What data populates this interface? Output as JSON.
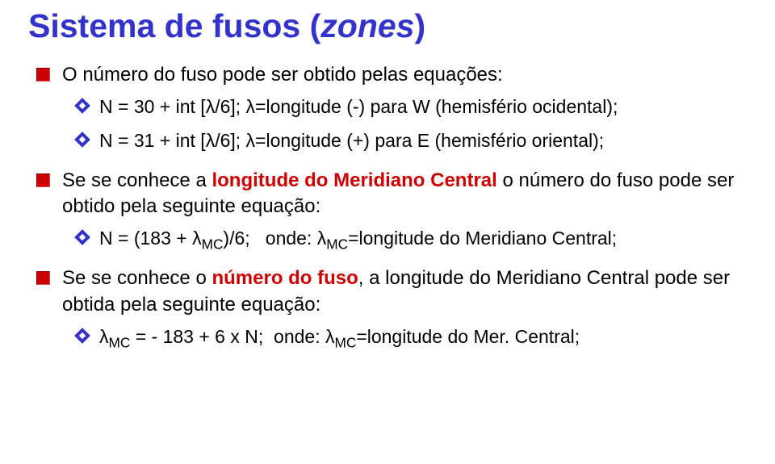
{
  "title": {
    "prefix": "Sistema de fusos (",
    "italic": "zones",
    "suffix": ")"
  },
  "colors": {
    "title": "#3333cc",
    "highlight": "#cc0000",
    "body_text": "#000000",
    "background": "#ffffff",
    "bullet_l1": "#cc0000",
    "bullet_l2": "#3333cc"
  },
  "fonts": {
    "title_family": "Comic Sans MS",
    "title_size_pt": 31,
    "body_family": "Verdana",
    "body_size_pt": 18
  },
  "items": [
    {
      "type": "l1",
      "pre": "O número do fuso pode ser obtido pelas equações:",
      "sub": [
        "N = 30 + int [λ/6]; λ=longitude (-) para W (hemisfério ocidental);",
        "N = 31 + int [λ/6]; λ=longitude (+) para E (hemisfério oriental);"
      ]
    },
    {
      "type": "l1",
      "pre": "Se se conhece a ",
      "hi": "longitude do Meridiano Central",
      "post": " o número do fuso pode ser obtido pela seguinte equação:",
      "sub_html": "N = (183 + λ<span class=\"sub\">MC</span>)/6;&nbsp;&nbsp;&nbsp;onde: λ<span class=\"sub\">MC</span>=longitude do Meridiano Central;"
    },
    {
      "type": "l1",
      "pre": "Se se conhece o ",
      "hi": "número do fuso",
      "post": ", a longitude do Meridiano Central pode ser obtida pela seguinte equação:",
      "sub_html": "λ<span class=\"sub\">MC</span> = - 183 + 6 x N;&nbsp;&nbsp;onde: λ<span class=\"sub\">MC</span>=longitude do Mer. Central;"
    }
  ]
}
